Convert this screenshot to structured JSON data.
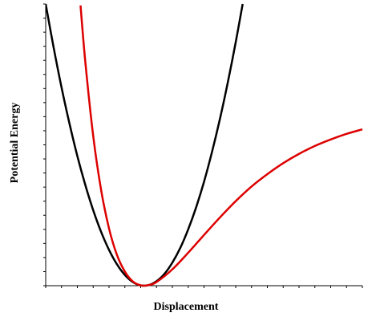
{
  "chart_data": {
    "type": "line",
    "xlabel": "Displacement",
    "ylabel": "Potential Energy",
    "xlim": [
      0,
      10
    ],
    "ylim": [
      0,
      10
    ],
    "xticks": [
      0,
      0.5,
      1,
      1.5,
      2,
      2.5,
      3,
      3.5,
      4,
      4.5,
      5,
      5.5,
      6,
      6.5,
      7,
      7.5,
      8,
      8.5,
      9,
      9.5,
      10
    ],
    "yticks": [
      0,
      0.5,
      1,
      1.5,
      2,
      2.5,
      3,
      3.5,
      4,
      4.5,
      5,
      5.5,
      6,
      6.5,
      7,
      7.5,
      8,
      8.5,
      9,
      9.5,
      10
    ],
    "series": [
      {
        "color": "#000000",
        "x": [
          0,
          0.25,
          0.5,
          0.75,
          1,
          1.25,
          1.5,
          1.75,
          2,
          2.25,
          2.5,
          2.75,
          3,
          3.25,
          3.5,
          3.75,
          4,
          4.25,
          4.5,
          4.75,
          5,
          5.25,
          5.5,
          5.75,
          6,
          6.22
        ],
        "values": [
          10,
          8.46,
          7.04,
          5.76,
          4.6,
          3.58,
          2.68,
          1.91,
          1.27,
          0.76,
          0.38,
          0.13,
          0.01,
          0.02,
          0.16,
          0.42,
          0.82,
          1.34,
          2,
          2.78,
          3.69,
          4.74,
          5.91,
          7.21,
          8.64,
          10
        ]
      },
      {
        "color": "#dd0000",
        "x": [
          1.1,
          1.25,
          1.5,
          1.75,
          2,
          2.25,
          2.5,
          2.75,
          3,
          3.25,
          3.5,
          4,
          4.5,
          5,
          5.5,
          6,
          6.5,
          7,
          7.5,
          8,
          8.5,
          9,
          9.5,
          10
        ],
        "values": [
          9.95,
          7.96,
          5.32,
          3.4,
          2.03,
          1.09,
          0.5,
          0.15,
          0.01,
          0.02,
          0.13,
          0.58,
          1.17,
          1.8,
          2.42,
          3,
          3.52,
          3.96,
          4.35,
          4.68,
          4.96,
          5.19,
          5.39,
          5.55
        ]
      }
    ]
  }
}
